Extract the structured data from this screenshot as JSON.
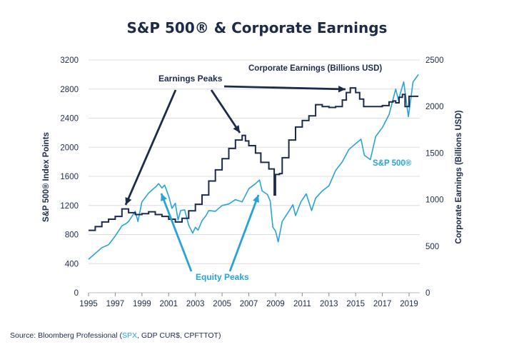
{
  "chart_data": {
    "type": "line",
    "title": "S&P 500® & Corporate Earnings",
    "xlabel": "",
    "ylabel_left": "S&P 500® Index Points",
    "ylabel_right": "Corporate Earnings (Billions USD)",
    "xlim": [
      1995,
      2019.8
    ],
    "ylim_left": [
      0,
      3200
    ],
    "ylim_right": [
      0,
      2500
    ],
    "x_ticks": [
      "1995",
      "1997",
      "1999",
      "2001",
      "2003",
      "2005",
      "2007",
      "2009",
      "2011",
      "2013",
      "2015",
      "2017",
      "2019"
    ],
    "y_ticks_left": [
      "0",
      "400",
      "800",
      "1200",
      "1600",
      "2000",
      "2400",
      "2800",
      "3200"
    ],
    "y_ticks_right": [
      "0",
      "500",
      "1000",
      "1500",
      "2000",
      "2500"
    ],
    "grid": true,
    "colors": {
      "sp500": "#27a3d8",
      "earnings": "#1c2b4a"
    },
    "series": [
      {
        "name": "S&P 500®",
        "axis": "left",
        "points": [
          [
            1995.0,
            460
          ],
          [
            1995.5,
            540
          ],
          [
            1996.0,
            620
          ],
          [
            1996.5,
            660
          ],
          [
            1997.0,
            780
          ],
          [
            1997.5,
            920
          ],
          [
            1997.8,
            950
          ],
          [
            1998.0,
            980
          ],
          [
            1998.5,
            1120
          ],
          [
            1998.7,
            980
          ],
          [
            1999.0,
            1250
          ],
          [
            1999.5,
            1370
          ],
          [
            1999.8,
            1420
          ],
          [
            2000.0,
            1450
          ],
          [
            2000.25,
            1500
          ],
          [
            2000.5,
            1440
          ],
          [
            2000.7,
            1480
          ],
          [
            2001.0,
            1330
          ],
          [
            2001.25,
            1160
          ],
          [
            2001.5,
            1230
          ],
          [
            2001.7,
            1000
          ],
          [
            2001.9,
            1130
          ],
          [
            2002.2,
            1140
          ],
          [
            2002.5,
            930
          ],
          [
            2002.8,
            820
          ],
          [
            2003.0,
            900
          ],
          [
            2003.2,
            860
          ],
          [
            2003.5,
            990
          ],
          [
            2003.8,
            1060
          ],
          [
            2004.0,
            1130
          ],
          [
            2004.5,
            1120
          ],
          [
            2005.0,
            1200
          ],
          [
            2005.5,
            1220
          ],
          [
            2006.0,
            1280
          ],
          [
            2006.5,
            1250
          ],
          [
            2007.0,
            1430
          ],
          [
            2007.5,
            1500
          ],
          [
            2007.8,
            1550
          ],
          [
            2008.0,
            1400
          ],
          [
            2008.4,
            1350
          ],
          [
            2008.6,
            1260
          ],
          [
            2008.8,
            900
          ],
          [
            2009.0,
            850
          ],
          [
            2009.2,
            700
          ],
          [
            2009.5,
            980
          ],
          [
            2010.0,
            1120
          ],
          [
            2010.3,
            1210
          ],
          [
            2010.5,
            1060
          ],
          [
            2010.9,
            1250
          ],
          [
            2011.3,
            1360
          ],
          [
            2011.7,
            1130
          ],
          [
            2012.0,
            1300
          ],
          [
            2012.5,
            1400
          ],
          [
            2013.0,
            1470
          ],
          [
            2013.5,
            1680
          ],
          [
            2014.0,
            1800
          ],
          [
            2014.5,
            1970
          ],
          [
            2015.0,
            2050
          ],
          [
            2015.4,
            2110
          ],
          [
            2015.65,
            1890
          ],
          [
            2016.1,
            1830
          ],
          [
            2016.5,
            2150
          ],
          [
            2017.0,
            2270
          ],
          [
            2017.5,
            2450
          ],
          [
            2018.0,
            2800
          ],
          [
            2018.2,
            2650
          ],
          [
            2018.6,
            2900
          ],
          [
            2018.95,
            2420
          ],
          [
            2019.3,
            2900
          ],
          [
            2019.5,
            2950
          ],
          [
            2019.7,
            3000
          ]
        ]
      },
      {
        "name": "Corporate Earnings (Billions USD)",
        "axis": "right",
        "points": [
          [
            1995.0,
            670
          ],
          [
            1995.5,
            710
          ],
          [
            1996.0,
            760
          ],
          [
            1996.5,
            790
          ],
          [
            1997.0,
            820
          ],
          [
            1997.5,
            900
          ],
          [
            1998.0,
            860
          ],
          [
            1998.5,
            840
          ],
          [
            1999.0,
            850
          ],
          [
            1999.5,
            870
          ],
          [
            2000.0,
            840
          ],
          [
            2000.5,
            820
          ],
          [
            2001.0,
            790
          ],
          [
            2001.5,
            760
          ],
          [
            2002.0,
            800
          ],
          [
            2002.5,
            880
          ],
          [
            2003.0,
            950
          ],
          [
            2003.5,
            1050
          ],
          [
            2004.0,
            1200
          ],
          [
            2004.5,
            1320
          ],
          [
            2005.0,
            1440
          ],
          [
            2005.5,
            1550
          ],
          [
            2006.0,
            1640
          ],
          [
            2006.5,
            1690
          ],
          [
            2006.75,
            1630
          ],
          [
            2007.0,
            1580
          ],
          [
            2007.5,
            1500
          ],
          [
            2007.9,
            1400
          ],
          [
            2008.5,
            1330
          ],
          [
            2008.9,
            1050
          ],
          [
            2009.0,
            1270
          ],
          [
            2009.3,
            1280
          ],
          [
            2009.5,
            1450
          ],
          [
            2010.0,
            1640
          ],
          [
            2010.5,
            1780
          ],
          [
            2011.0,
            1850
          ],
          [
            2011.5,
            1900
          ],
          [
            2012.0,
            2020
          ],
          [
            2012.5,
            2000
          ],
          [
            2013.0,
            1990
          ],
          [
            2013.5,
            2000
          ],
          [
            2014.0,
            2070
          ],
          [
            2014.3,
            2150
          ],
          [
            2014.6,
            2200
          ],
          [
            2015.0,
            2150
          ],
          [
            2015.3,
            2080
          ],
          [
            2015.6,
            2000
          ],
          [
            2016.0,
            2000
          ],
          [
            2016.5,
            2000
          ],
          [
            2017.0,
            2010
          ],
          [
            2017.5,
            2050
          ],
          [
            2017.8,
            2060
          ],
          [
            2018.0,
            2040
          ],
          [
            2018.25,
            2100
          ],
          [
            2018.5,
            2130
          ],
          [
            2018.7,
            2000
          ],
          [
            2019.0,
            2110
          ],
          [
            2019.5,
            2110
          ],
          [
            2019.7,
            2110
          ]
        ]
      }
    ],
    "annotations": {
      "earnings_peaks": "Earnings Peaks",
      "equity_peaks": "Equity Peaks",
      "sp500_series_label": "S&P 500®",
      "earnings_series_label": "Corporate Earnings (Billions USD)"
    }
  },
  "source": {
    "prefix": "Source: Bloomberg Professional (",
    "highlight": "SPX",
    "suffix": ", GDP CUR$, CPFTTOT)"
  }
}
